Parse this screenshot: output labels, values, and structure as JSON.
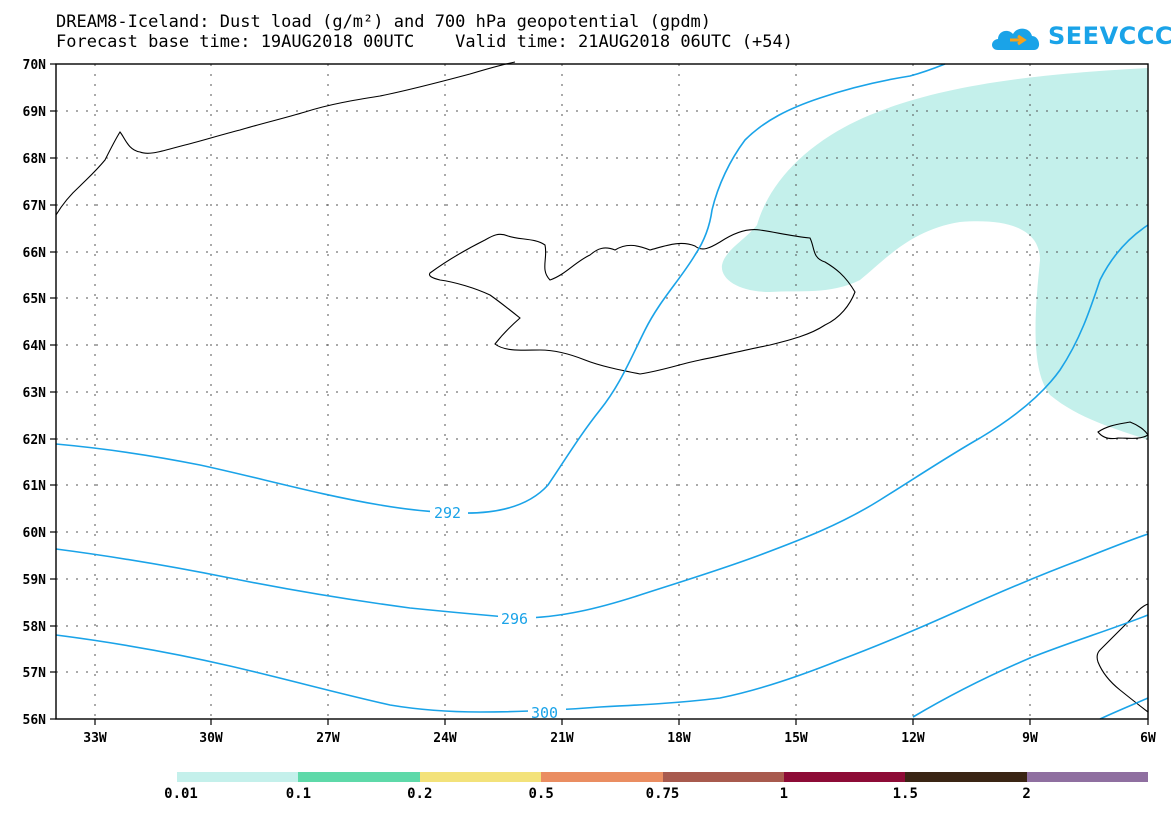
{
  "title_line1": "DREAM8-Iceland: Dust load (g/m²) and 700 hPa geopotential (gpdm)",
  "title_line2": "Forecast base time: 19AUG2018 00UTC    Valid time: 21AUG2018 06UTC (+54)",
  "logo_text": "SEEVCCC",
  "map": {
    "lon_range": [
      -34,
      -6
    ],
    "lat_range": [
      56,
      70
    ],
    "lon_labels": [
      "33W",
      "30W",
      "27W",
      "24W",
      "21W",
      "18W",
      "15W",
      "12W",
      "9W",
      "6W"
    ],
    "lat_labels": [
      "70N",
      "69N",
      "68N",
      "67N",
      "66N",
      "65N",
      "64N",
      "63N",
      "62N",
      "61N",
      "60N",
      "59N",
      "58N",
      "57N",
      "56N"
    ],
    "contour_labels": [
      "292",
      "296",
      "300"
    ],
    "contour_color": "#1aa3e8",
    "dust_fill_color": "#c4f0eb"
  },
  "colorbar": {
    "colors": [
      "#c4f0eb",
      "#5ed9a9",
      "#f3e27a",
      "#ea8d61",
      "#a85a4e",
      "#8d0b36",
      "#3a2514",
      "#8f6fa0"
    ],
    "labels": [
      "0.01",
      "0.1",
      "0.2",
      "0.5",
      "0.75",
      "1",
      "1.5",
      "2"
    ]
  }
}
